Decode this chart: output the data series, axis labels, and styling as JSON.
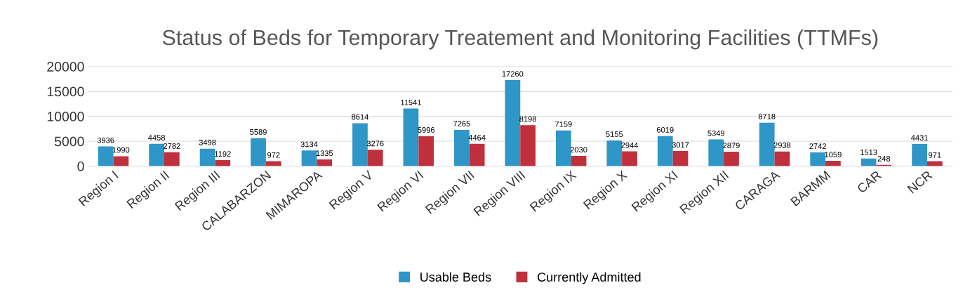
{
  "chart_data": {
    "type": "bar",
    "title": "Status of Beds for Temporary Treatement and Monitoring Facilities (TTMFs)",
    "categories": [
      "Region I",
      "Region II",
      "Region III",
      "CALABARZON",
      "MIMAROPA",
      "Region V",
      "Region VI",
      "Region VII",
      "Region VIII",
      "Region IX",
      "Region X",
      "Region XI",
      "Region XII",
      "CARAGA",
      "BARMM",
      "CAR",
      "NCR"
    ],
    "series": [
      {
        "name": "Usable Beds",
        "color": "#2f96c8",
        "values": [
          3936,
          4458,
          3498,
          5589,
          3134,
          8614,
          11541,
          7265,
          17260,
          7159,
          5155,
          6019,
          5349,
          8718,
          2742,
          1513,
          4431
        ]
      },
      {
        "name": "Currently Admitted",
        "color": "#c0303c",
        "values": [
          1990,
          2782,
          1192,
          972,
          1335,
          3276,
          5996,
          4464,
          8198,
          2030,
          2944,
          3017,
          2879,
          2938,
          1059,
          248,
          971
        ]
      }
    ],
    "ylim": [
      0,
      20000
    ],
    "yticks": [
      0,
      5000,
      10000,
      15000,
      20000
    ],
    "grid": "y",
    "legend": "bottom",
    "data_labels": true
  }
}
